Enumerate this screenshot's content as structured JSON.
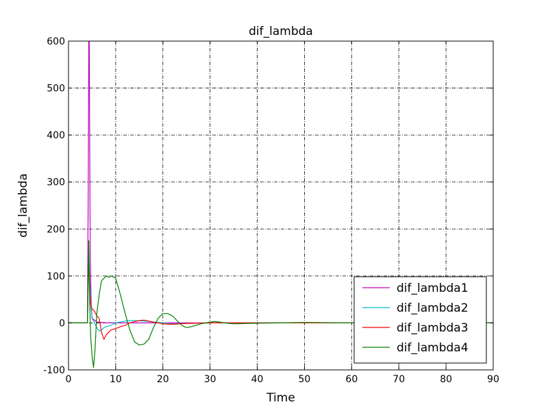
{
  "chart_data": {
    "type": "line",
    "title": "dif_lambda",
    "xlabel": "Time",
    "ylabel": "dif_lambda",
    "xlim": [
      0,
      90
    ],
    "ylim": [
      -100,
      600
    ],
    "xticks": [
      0,
      10,
      20,
      30,
      40,
      50,
      60,
      70,
      80,
      90
    ],
    "yticks": [
      -100,
      0,
      100,
      200,
      300,
      400,
      500,
      600
    ],
    "grid": true,
    "legend_position": "lower-right",
    "series": [
      {
        "name": "dif_lambda1",
        "color": "#bf00bf",
        "x": [
          0,
          4.0,
          4.2,
          4.3,
          4.4,
          4.6,
          4.8,
          5.0,
          6.0,
          8.0,
          12.0,
          20.0,
          40.0,
          60.0,
          90.0
        ],
        "y": [
          0,
          0,
          300,
          600,
          600,
          150,
          40,
          10,
          2,
          0,
          0,
          0,
          0,
          0,
          0
        ]
      },
      {
        "name": "dif_lambda2",
        "color": "#00bfbf",
        "x": [
          0,
          4.0,
          4.3,
          4.5,
          4.7,
          5.0,
          5.5,
          6.0,
          6.5,
          7.0,
          7.5,
          8.0,
          9.0,
          10.0,
          11.0,
          12.0,
          13.0,
          14.0,
          16.0,
          18.0,
          20.0,
          22.0,
          25.0,
          30.0,
          40.0,
          60.0,
          90.0
        ],
        "y": [
          0,
          0,
          150,
          90,
          40,
          10,
          0,
          -10,
          -17,
          -15,
          -10,
          -8,
          -5,
          0,
          2,
          4,
          5,
          5,
          4,
          2,
          0,
          -2,
          -1,
          0,
          0,
          0,
          0
        ]
      },
      {
        "name": "dif_lambda3",
        "color": "#ff0000",
        "x": [
          0,
          4.0,
          4.3,
          4.5,
          4.7,
          5.0,
          5.5,
          6.0,
          6.5,
          7.0,
          7.5,
          8.0,
          9.0,
          10.0,
          11.0,
          12.0,
          13.0,
          14.0,
          15.0,
          16.0,
          17.0,
          18.0,
          20.0,
          22.0,
          25.0,
          30.0,
          40.0,
          60.0,
          90.0
        ],
        "y": [
          0,
          0,
          140,
          60,
          40,
          30,
          25,
          15,
          10,
          -20,
          -35,
          -25,
          -15,
          -12,
          -8,
          -5,
          0,
          3,
          5,
          6,
          4,
          2,
          -2,
          -3,
          -1,
          0,
          0,
          0,
          0
        ]
      },
      {
        "name": "dif_lambda4",
        "color": "#008000",
        "x": [
          0,
          4.0,
          4.3,
          4.5,
          4.7,
          5.0,
          5.3,
          5.6,
          6.0,
          6.5,
          7.0,
          7.5,
          8.0,
          8.5,
          9.0,
          9.5,
          10.0,
          11.0,
          12.0,
          13.0,
          14.0,
          15.0,
          16.0,
          17.0,
          18.0,
          19.0,
          20.0,
          21.0,
          22.0,
          23.0,
          24.0,
          25.0,
          26.0,
          27.0,
          28.0,
          30.0,
          31.0,
          32.0,
          33.0,
          35.0,
          38.0,
          45.0,
          50.0,
          60.0,
          90.0
        ],
        "y": [
          0,
          0,
          175,
          40,
          -30,
          -70,
          -95,
          -60,
          20,
          60,
          90,
          95,
          100,
          97,
          100,
          98,
          95,
          60,
          20,
          -15,
          -40,
          -47,
          -45,
          -35,
          -10,
          10,
          20,
          20,
          15,
          5,
          -5,
          -10,
          -8,
          -5,
          -2,
          2,
          3,
          2,
          0,
          -2,
          -1,
          0,
          1,
          0,
          0
        ]
      }
    ]
  }
}
